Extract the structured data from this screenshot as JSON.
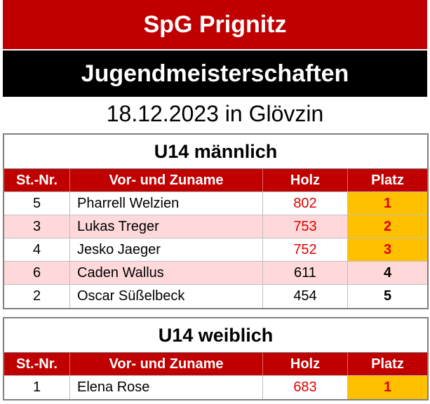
{
  "header": {
    "club": "SpG Prignitz",
    "event": "Jugendmeisterschaften",
    "date": "18.12.2023 in Glövzin"
  },
  "tables": [
    {
      "title": "U14 männlich",
      "columns": [
        "St.-Nr.",
        "Vor- und Zuname",
        "Holz",
        "Platz"
      ],
      "rows": [
        [
          5,
          "Pharrell Welzien",
          802,
          1
        ],
        [
          3,
          "Lukas Treger",
          753,
          2
        ],
        [
          4,
          "Jesko Jaeger",
          752,
          3
        ],
        [
          6,
          "Caden Wallus",
          611,
          4
        ],
        [
          2,
          "Oscar Süßelbeck",
          454,
          5
        ]
      ]
    },
    {
      "title": "U14 weiblich",
      "columns": [
        "St.-Nr.",
        "Vor- und Zuname",
        "Holz",
        "Platz"
      ],
      "rows": [
        [
          1,
          "Elena Rose",
          683,
          1
        ]
      ]
    }
  ]
}
